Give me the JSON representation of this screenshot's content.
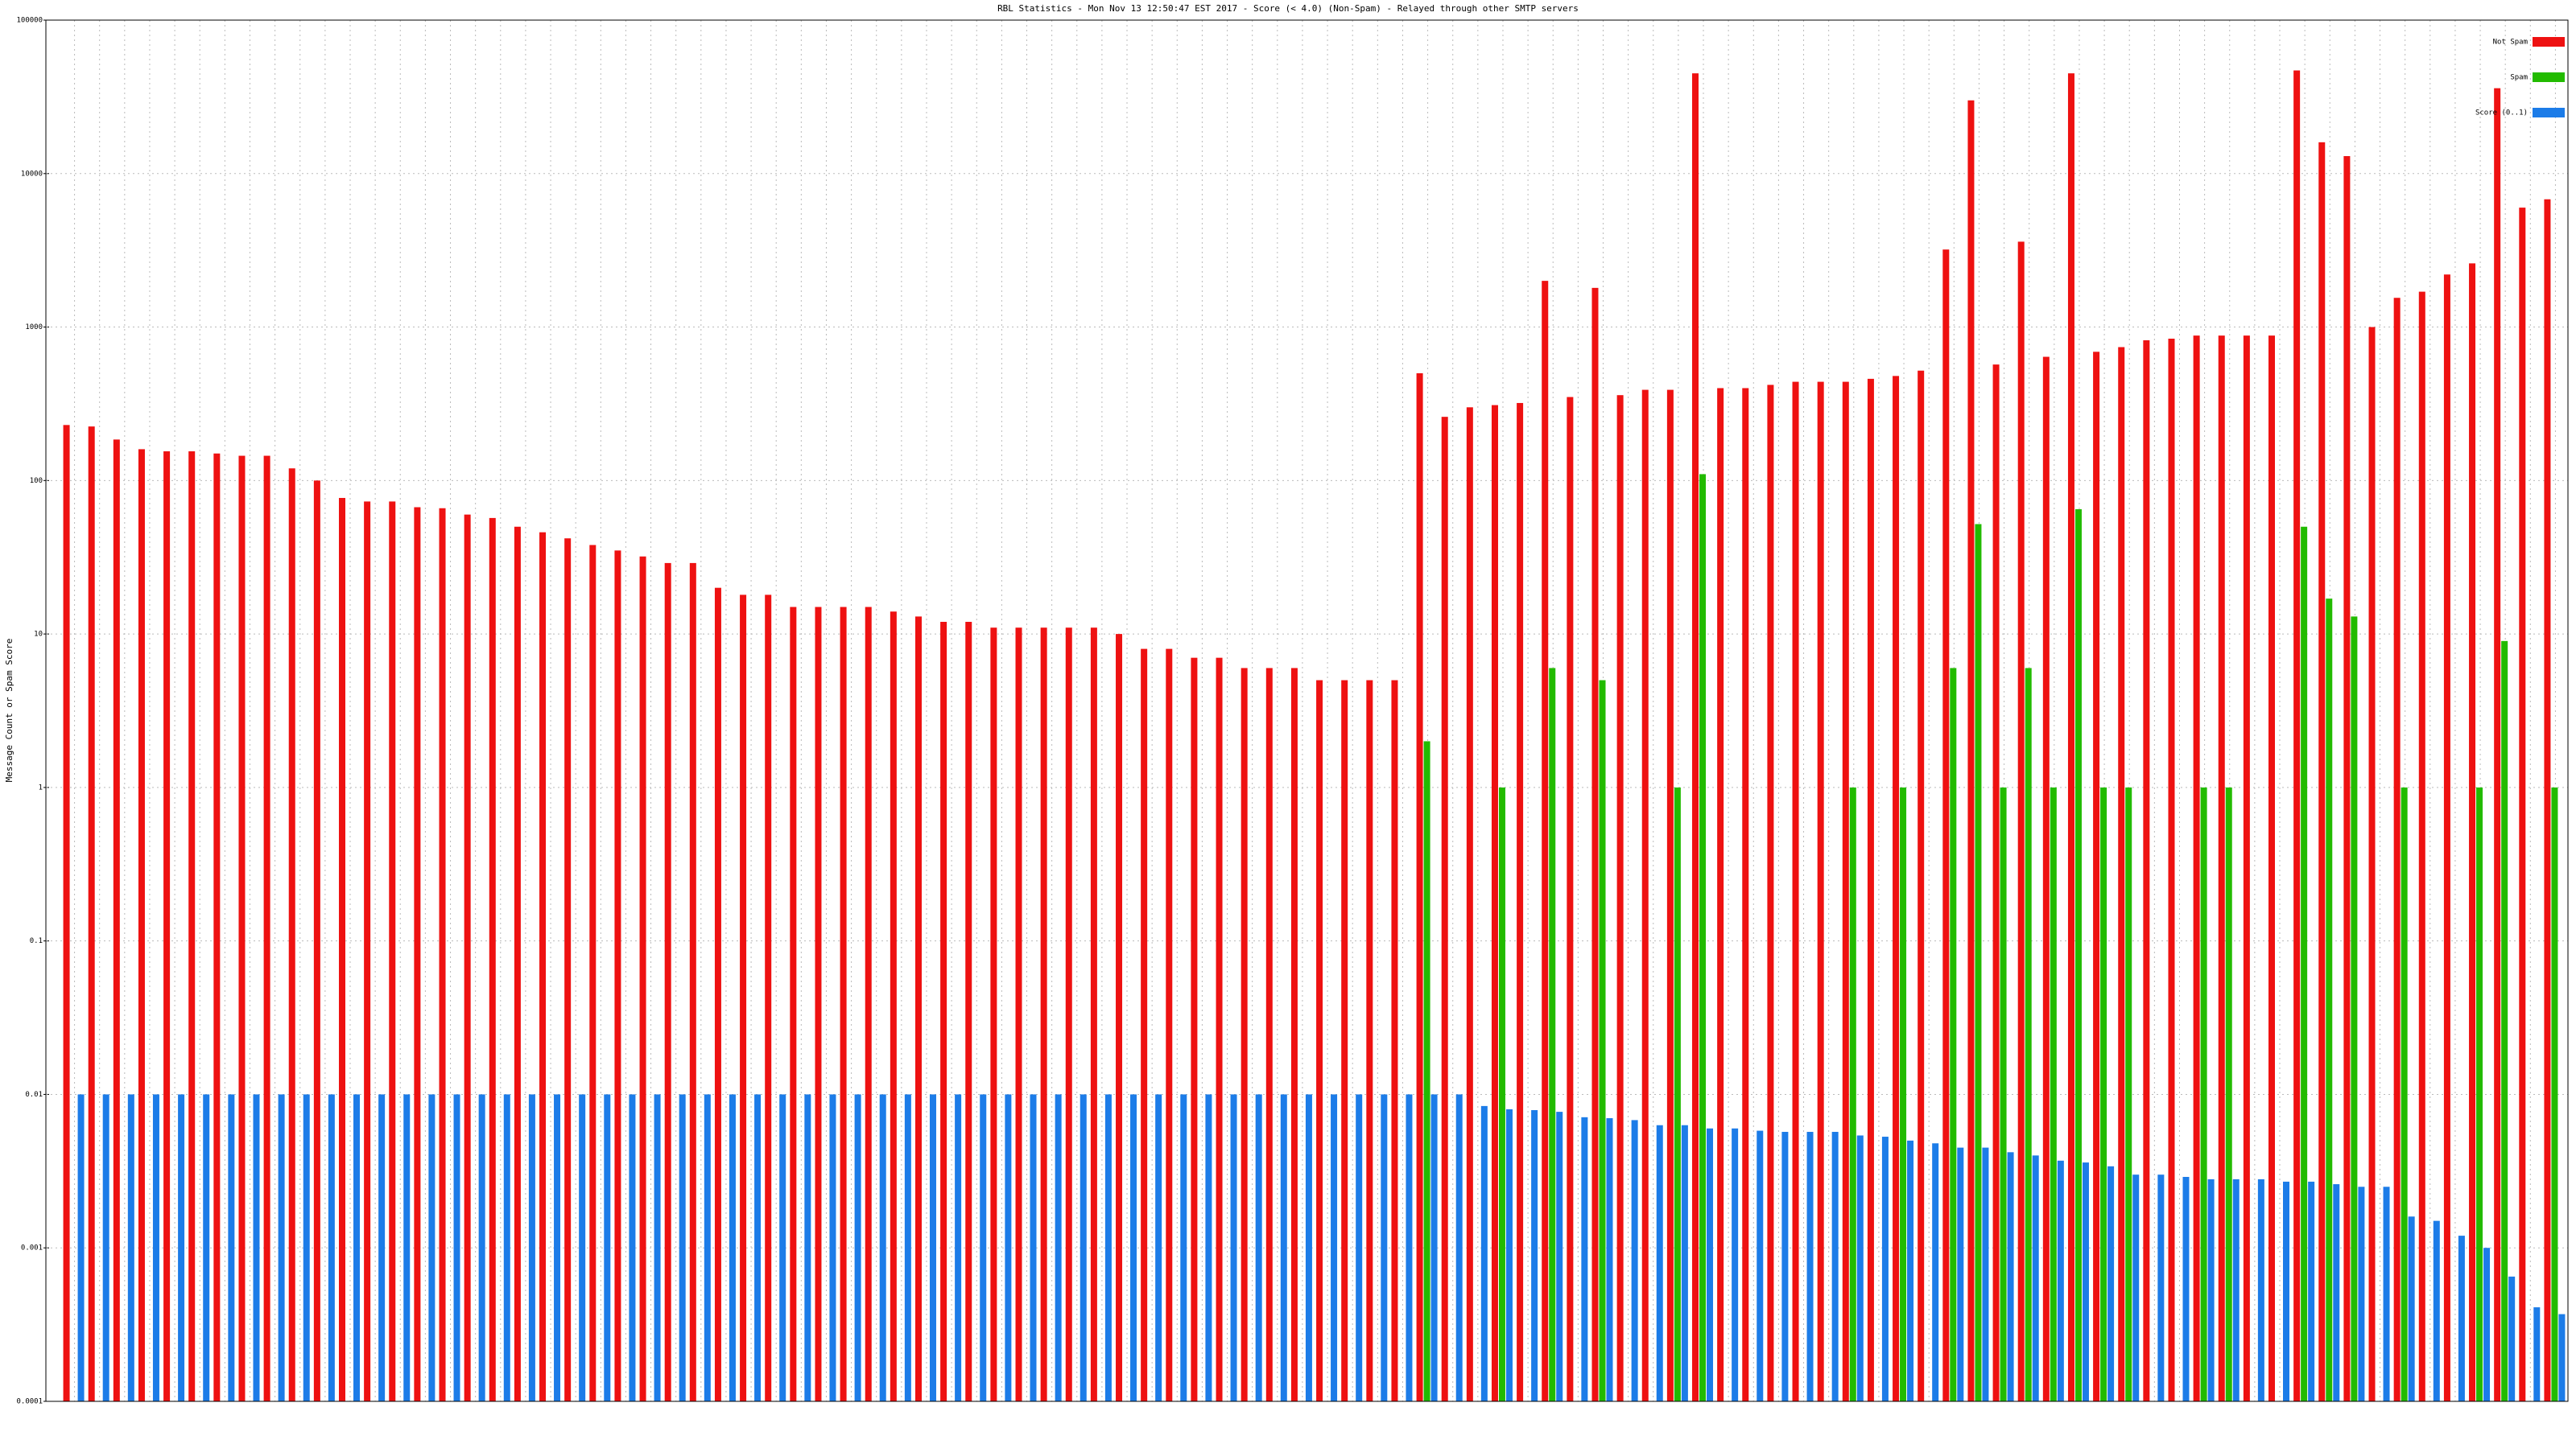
{
  "chart_data": {
    "type": "bar",
    "title": "RBL Statistics - Mon Nov 13 12:50:47 EST 2017 - Score (< 4.0) (Non-Spam) - Relayed through other SMTP servers",
    "y_label": "Message Count or Spam Score",
    "log_y": true,
    "grid": true,
    "legend": "top-right",
    "ylim": [
      0.0001,
      100000
    ],
    "yticks": [
      0.0001,
      0.001,
      0.01,
      0.1,
      1,
      10,
      100,
      1000,
      10000,
      100000
    ],
    "categories": [
      null,
      null,
      null,
      null,
      null,
      null,
      null,
      null,
      null,
      null,
      null,
      null,
      null,
      null,
      null,
      null,
      null,
      null,
      null,
      null,
      null,
      null,
      null,
      null,
      null,
      null,
      null,
      null,
      null,
      null,
      null,
      null,
      null,
      null,
      null,
      null,
      null,
      null,
      null,
      null,
      null,
      null,
      null,
      null,
      null,
      null,
      null,
      null,
      null,
      null,
      null,
      null,
      null,
      null,
      null,
      null,
      null,
      null,
      null,
      null,
      null,
      null,
      null,
      null,
      null,
      null,
      null,
      null,
      null,
      null,
      null,
      null,
      null,
      null,
      null,
      null,
      null,
      null,
      null,
      null,
      null,
      null,
      null,
      null,
      null,
      null,
      null,
      null,
      null,
      null,
      null,
      null,
      null,
      null,
      null,
      null,
      null,
      null,
      null,
      null
    ],
    "series": [
      {
        "name": "Not Spam",
        "color": "#ee1111",
        "values": [
          230,
          225,
          185,
          160,
          155,
          155,
          150,
          145,
          145,
          120,
          100,
          77,
          73,
          73,
          67,
          66,
          60,
          57,
          50,
          46,
          42,
          38,
          35,
          32,
          29,
          29,
          20,
          18,
          18,
          15,
          15,
          15,
          15,
          14,
          13,
          12,
          12,
          11,
          11,
          11,
          11,
          11,
          10,
          8,
          8,
          7,
          7,
          6,
          6,
          6,
          5,
          5,
          5,
          5,
          500,
          260,
          300,
          310,
          320,
          2000,
          350,
          1800,
          360,
          390,
          390,
          45000,
          400,
          400,
          420,
          440,
          440,
          440,
          460,
          480,
          520,
          3200,
          30000,
          570,
          3600,
          640,
          45000,
          690,
          740,
          820,
          840,
          880,
          880,
          880,
          880,
          47000,
          16000,
          13000,
          1000,
          1550,
          1700,
          2200,
          2600,
          36000,
          6000,
          6800
        ]
      },
      {
        "name": "Spam",
        "color": "#22bb00",
        "values": [
          null,
          null,
          null,
          null,
          null,
          null,
          null,
          null,
          null,
          null,
          null,
          null,
          null,
          null,
          null,
          null,
          null,
          null,
          null,
          null,
          null,
          null,
          null,
          null,
          null,
          null,
          null,
          null,
          null,
          null,
          null,
          null,
          null,
          null,
          null,
          null,
          null,
          null,
          null,
          null,
          null,
          null,
          null,
          null,
          null,
          null,
          null,
          null,
          null,
          null,
          null,
          null,
          null,
          null,
          2,
          null,
          null,
          1,
          null,
          6,
          null,
          5,
          null,
          null,
          1,
          110,
          null,
          null,
          null,
          null,
          null,
          1,
          null,
          1,
          null,
          6,
          52,
          1,
          6,
          1,
          65,
          1,
          1,
          null,
          null,
          1,
          1,
          null,
          null,
          50,
          17,
          13,
          null,
          1,
          null,
          null,
          1,
          9,
          null,
          1
        ]
      },
      {
        "name": "Score (0..1)",
        "color": "#1c7ce8",
        "values": [
          0.01,
          0.01,
          0.01,
          0.01,
          0.01,
          0.01,
          0.01,
          0.01,
          0.01,
          0.01,
          0.01,
          0.01,
          0.01,
          0.01,
          0.01,
          0.01,
          0.01,
          0.01,
          0.01,
          0.01,
          0.01,
          0.01,
          0.01,
          0.01,
          0.01,
          0.01,
          0.01,
          0.01,
          0.01,
          0.01,
          0.01,
          0.01,
          0.01,
          0.01,
          0.01,
          0.01,
          0.01,
          0.01,
          0.01,
          0.01,
          0.01,
          0.01,
          0.01,
          0.01,
          0.01,
          0.01,
          0.01,
          0.01,
          0.01,
          0.01,
          0.01,
          0.01,
          0.01,
          0.01,
          0.01,
          0.01,
          0.0084,
          0.008,
          0.0079,
          0.0077,
          0.0071,
          0.007,
          0.0068,
          0.0063,
          0.0063,
          0.006,
          0.006,
          0.0058,
          0.0057,
          0.0057,
          0.0057,
          0.0054,
          0.0053,
          0.005,
          0.0048,
          0.0045,
          0.0045,
          0.0042,
          0.004,
          0.0037,
          0.0036,
          0.0034,
          0.003,
          0.003,
          0.0029,
          0.0028,
          0.0028,
          0.0028,
          0.0027,
          0.0027,
          0.0026,
          0.0025,
          0.0025,
          0.0016,
          0.0015,
          0.0012,
          0.001,
          0.00065,
          0.00041,
          0.00037
        ]
      }
    ]
  }
}
